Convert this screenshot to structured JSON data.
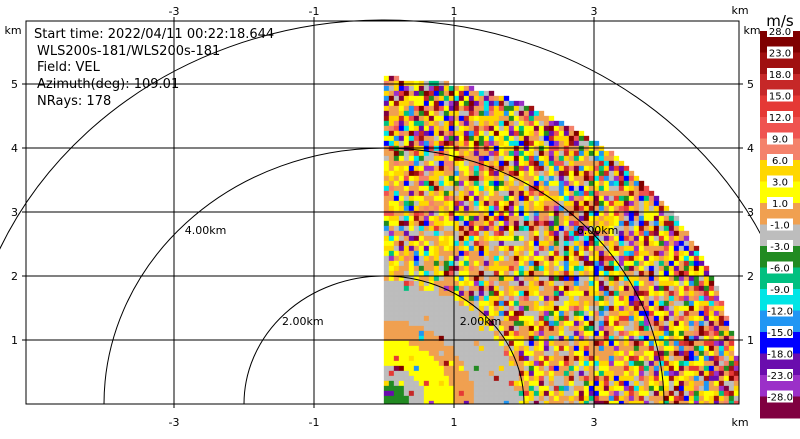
{
  "header": {
    "start_time": "Start time: 2022/04/11 00:22:18.644",
    "instrument": "WLS200s-181/WLS200s-181",
    "field": "Field: VEL",
    "azimuth": "Azimuth(deg): 109.01",
    "nrays": "NRays: 178"
  },
  "chart_data": {
    "type": "heatmap",
    "subtype": "radar-velocity-sector-display",
    "field": "VEL",
    "azimuth_deg": 109.01,
    "nrays": 178,
    "xlabel": "km",
    "ylabel": "km",
    "xlim": [
      -5.0,
      5.0
    ],
    "ylim": [
      0.0,
      6.0
    ],
    "x_ticks": [
      -3,
      -1,
      1,
      3
    ],
    "y_ticks": [
      1,
      2,
      3,
      4,
      5
    ],
    "x_tick_labels": [
      "-3",
      "-1",
      "1",
      "3"
    ],
    "y_tick_labels": [
      "1",
      "2",
      "3",
      "4",
      "5"
    ],
    "x_unit_label": "km",
    "y_unit_label": "km",
    "grid": true,
    "range_rings": [
      {
        "radius_km": 2.0,
        "label": "2.00km"
      },
      {
        "radius_km": 4.0,
        "label": "4.00km"
      }
    ],
    "ring_label_extra": "6.00km",
    "max_range_km": 5.09,
    "colorbar": {
      "unit": "m/s",
      "tick_labels": [
        "28.0",
        "23.0",
        "18.0",
        "15.0",
        "12.0",
        "9.0",
        "6.0",
        "3.0",
        "1.0",
        "-1.0",
        "-3.0",
        "-6.0",
        "-9.0",
        "-12.0",
        "-15.0",
        "-18.0",
        "-23.0",
        "-28.0"
      ],
      "colors": [
        "#800000",
        "#a01010",
        "#c62828",
        "#e53935",
        "#ef5350",
        "#f4826b",
        "#ffd700",
        "#ffff00",
        "#f0a050",
        "#bdbdbd",
        "#228b22",
        "#00c080",
        "#00e5e5",
        "#2196f3",
        "#0000ff",
        "#6a0dad",
        "#9b30c8",
        "#800040"
      ]
    },
    "bands": [
      {
        "r_min_km": 0.0,
        "r_max_km": 0.35,
        "dominant_value": "-3.0 to -1.0",
        "color": "#228b22"
      },
      {
        "r_min_km": 0.35,
        "r_max_km": 0.6,
        "dominant_value": "-1.0 to 1.0",
        "color": "#bdbdbd"
      },
      {
        "r_min_km": 0.6,
        "r_max_km": 1.0,
        "dominant_value": "3.0 to 6.0",
        "color": "#ffff00"
      },
      {
        "r_min_km": 1.0,
        "r_max_km": 1.3,
        "dominant_value": "1.0 to 3.0",
        "color": "#f0a050"
      },
      {
        "r_min_km": 1.3,
        "r_max_km": 1.9,
        "dominant_value": "-1.0 to 1.0",
        "color": "#bdbdbd"
      },
      {
        "r_min_km": 1.9,
        "r_max_km": 5.09,
        "dominant_value": "noisy, all values",
        "color": "mixed"
      }
    ]
  }
}
